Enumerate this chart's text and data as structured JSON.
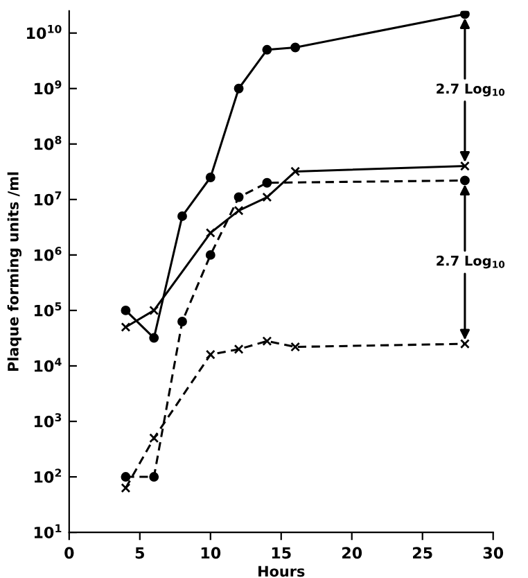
{
  "chart_data": {
    "type": "line",
    "xlabel": "Hours",
    "ylabel": "Plaque forming units /ml",
    "log": "y",
    "xlim": [
      0,
      30
    ],
    "xticks": [
      0,
      5,
      10,
      15,
      20,
      25,
      30
    ],
    "ylim": [
      10,
      25000000000.0
    ],
    "yticks": [
      {
        "value": 10,
        "label": "10$^{1}$"
      },
      {
        "value": 100,
        "label": "10$^{2}$"
      },
      {
        "value": 1000,
        "label": "10$^{3}$"
      },
      {
        "value": 10000,
        "label": "10$^{4}$"
      },
      {
        "value": 100000,
        "label": "10$^{5}$"
      },
      {
        "value": 1000000,
        "label": "10$^{6}$"
      },
      {
        "value": 10000000,
        "label": "10$^{7}$"
      },
      {
        "value": 100000000,
        "label": "10$^{8}$"
      },
      {
        "value": 1000000000,
        "label": "10$^{9}$"
      },
      {
        "value": 10000000000,
        "label": "10$^{10}$"
      }
    ],
    "grid": false,
    "series": [
      {
        "color": "#000000",
        "marker": "circle",
        "line_style": "solid",
        "x": [
          4,
          6,
          8,
          10,
          12,
          14,
          16,
          28
        ],
        "values": [
          100000,
          32000,
          5000000,
          25000000,
          1000000000,
          5000000000,
          5500000000,
          22000000000
        ]
      },
      {
        "color": "#000000",
        "marker": "cross",
        "line_style": "solid",
        "x": [
          4,
          6,
          10,
          12,
          14,
          16,
          28
        ],
        "values": [
          50000,
          100000,
          2500000,
          6300000,
          11000000,
          32000000,
          40000000
        ]
      },
      {
        "color": "#000000",
        "marker": "circle",
        "line_style": "dashed",
        "x": [
          4,
          6,
          8,
          10,
          12,
          14,
          28
        ],
        "values": [
          100,
          100,
          63000,
          1000000,
          11000000,
          20000000,
          22000000
        ]
      },
      {
        "color": "#000000",
        "marker": "cross",
        "line_style": "dashed",
        "x": [
          4,
          6,
          10,
          12,
          14,
          16,
          28
        ],
        "values": [
          63,
          500,
          16000,
          20000,
          28000,
          22000,
          25000
        ]
      }
    ],
    "annotations": [
      {
        "text": "2.7 Log$_{10}$",
        "x": 28,
        "y": 40000000
      },
      {
        "text": "2.7 Log$_{10}$",
        "x": 28,
        "y": 25000
      }
    ]
  }
}
